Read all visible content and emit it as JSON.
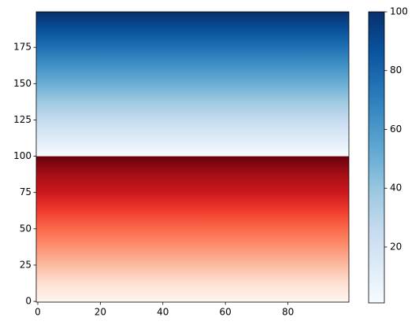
{
  "chart_data": {
    "type": "heatmap",
    "xlim": [
      -0.5,
      99.5
    ],
    "xticks": [
      0,
      20,
      40,
      60,
      80
    ],
    "ylim": [
      -0.5,
      199.5
    ],
    "yticks": [
      0,
      25,
      50,
      75,
      100,
      125,
      150,
      175
    ],
    "layers": [
      {
        "colormap": "Reds",
        "y": [
          0,
          100
        ],
        "values": [
          0,
          100
        ],
        "colors": [
          "#fff5f0",
          "#fee0d2",
          "#fcbba1",
          "#fc9272",
          "#fb6a4a",
          "#ef3b2c",
          "#cb181d",
          "#a50f15",
          "#67000d"
        ]
      },
      {
        "colormap": "Blues",
        "y": [
          100,
          199.5
        ],
        "values": [
          0,
          100
        ],
        "colors": [
          "#f7fbff",
          "#deebf7",
          "#c6dbef",
          "#9ecae1",
          "#6baed6",
          "#4292c6",
          "#2171b5",
          "#08519c",
          "#08306b"
        ]
      }
    ],
    "colorbar": {
      "layer": 1,
      "lim": [
        1,
        100
      ],
      "ticks": [
        20,
        40,
        60,
        80,
        100
      ]
    }
  }
}
